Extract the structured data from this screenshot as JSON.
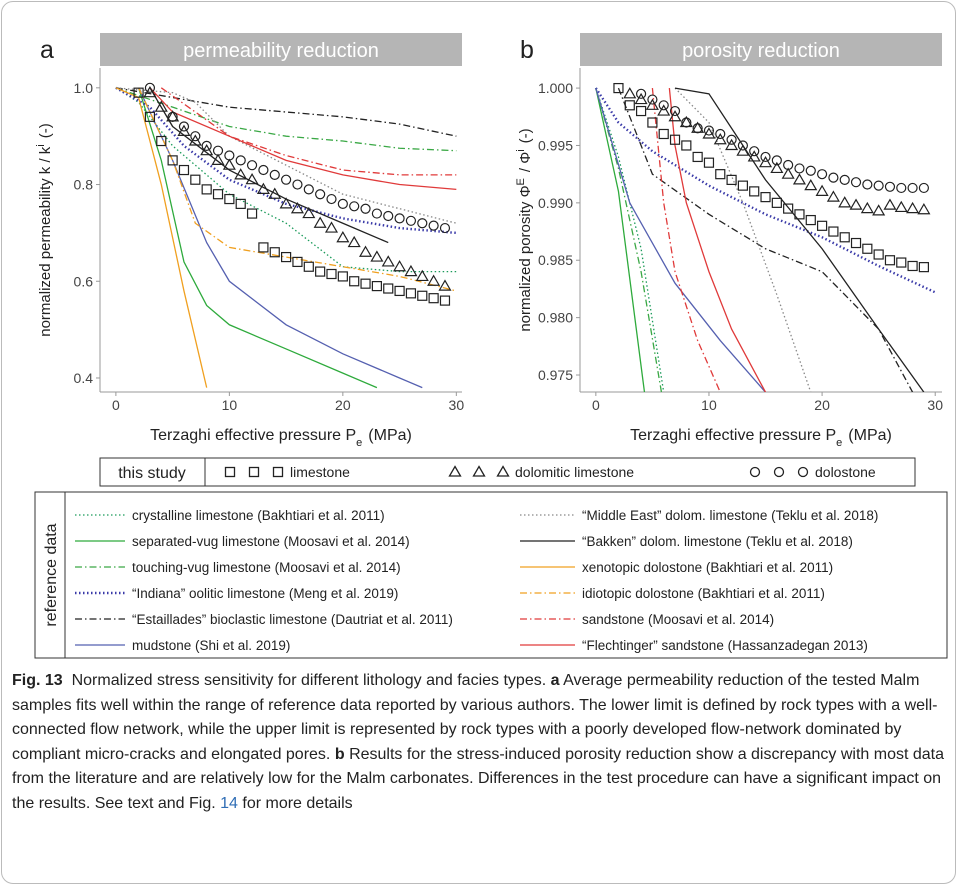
{
  "chart_data": [
    {
      "type": "line",
      "panel_label": "a",
      "title": "permeability reduction",
      "x_label": [
        {
          "text": "Terzaghi effective pressure  P"
        },
        {
          "sub": "e"
        },
        {
          "text": "(MPa)"
        }
      ],
      "y_label": [
        {
          "text": "normalized permeability k / k"
        },
        {
          "sup": "i"
        },
        {
          "text": "(-)"
        }
      ],
      "xlim": [
        -1.4,
        30.5
      ],
      "xticks": [
        0,
        10,
        20,
        30
      ],
      "ylim": [
        0.371,
        1.041
      ],
      "yticks": [
        0.4,
        0.6,
        0.8,
        {
          "value": 1,
          "label": "1.0"
        }
      ],
      "series": [
        {
          "color": "#1a9a5a",
          "dash": "dotted",
          "x": [
            0,
            2,
            5,
            10,
            15,
            20,
            25,
            30
          ],
          "values": [
            1,
            0.97,
            0.88,
            0.78,
            0.72,
            0.63,
            0.62,
            0.62
          ]
        },
        {
          "color": "#2eaa3c",
          "dash": "solid",
          "x": [
            2,
            4,
            6,
            8,
            10,
            15,
            20,
            23
          ],
          "values": [
            1,
            0.85,
            0.64,
            0.55,
            0.51,
            0.46,
            0.41,
            0.38
          ]
        },
        {
          "color": "#3aa845",
          "dash": "dashdot",
          "x": [
            0,
            5,
            10,
            15,
            20,
            25,
            30
          ],
          "values": [
            1,
            0.96,
            0.92,
            0.9,
            0.89,
            0.875,
            0.87
          ]
        },
        {
          "color": "#3a3aa8",
          "dash": "dotted",
          "x": [
            0,
            3,
            6,
            10,
            15,
            20,
            25,
            30
          ],
          "values": [
            1,
            0.96,
            0.88,
            0.81,
            0.76,
            0.73,
            0.71,
            0.7
          ]
        },
        {
          "color": "#222222",
          "dash": "dashdot",
          "x": [
            0,
            5,
            10,
            15,
            20,
            25,
            30
          ],
          "values": [
            1,
            0.98,
            0.96,
            0.95,
            0.94,
            0.925,
            0.9
          ]
        },
        {
          "color": "#5560b0",
          "dash": "solid",
          "x": [
            2,
            5,
            8,
            10,
            15,
            20,
            25,
            27
          ],
          "values": [
            1,
            0.85,
            0.68,
            0.6,
            0.51,
            0.45,
            0.4,
            0.38
          ]
        },
        {
          "color": "#888888",
          "dash": "dotted",
          "x": [
            0,
            5,
            7,
            10,
            15,
            20,
            25,
            30
          ],
          "values": [
            1,
            0.99,
            0.97,
            0.9,
            0.84,
            0.78,
            0.75,
            0.72
          ]
        },
        {
          "color": "#222222",
          "dash": "solid",
          "x": [
            3,
            5,
            10,
            15,
            20,
            24
          ],
          "values": [
            1,
            0.92,
            0.83,
            0.77,
            0.72,
            0.68
          ]
        },
        {
          "color": "#f0a020",
          "dash": "solid",
          "x": [
            0,
            2,
            4,
            6,
            8
          ],
          "values": [
            1,
            0.98,
            0.8,
            0.58,
            0.38
          ]
        },
        {
          "color": "#f0a020",
          "dash": "dashdot",
          "x": [
            2,
            5,
            7,
            10,
            15,
            20,
            25,
            30
          ],
          "values": [
            1,
            0.85,
            0.72,
            0.67,
            0.65,
            0.63,
            0.61,
            0.58
          ]
        },
        {
          "color": "#e03a3a",
          "dash": "dashdot",
          "x": [
            4,
            10,
            15,
            20,
            25,
            30
          ],
          "values": [
            1,
            0.9,
            0.86,
            0.83,
            0.82,
            0.82
          ]
        },
        {
          "color": "#e03a3a",
          "dash": "solid",
          "x": [
            3,
            5,
            10,
            15,
            20,
            25,
            30
          ],
          "values": [
            1,
            0.95,
            0.9,
            0.85,
            0.82,
            0.8,
            0.79
          ]
        },
        {
          "marker": "square",
          "x": [
            2,
            3,
            4,
            5,
            6,
            7,
            8,
            9,
            10,
            11,
            12,
            13,
            14,
            15,
            16,
            17,
            18,
            19,
            20,
            21,
            22,
            23,
            24,
            25,
            26,
            27,
            28,
            29
          ],
          "values": [
            0.99,
            0.94,
            0.89,
            0.85,
            0.83,
            0.81,
            0.79,
            0.78,
            0.77,
            0.76,
            0.74,
            0.67,
            0.66,
            0.65,
            0.64,
            0.63,
            0.62,
            0.615,
            0.61,
            0.6,
            0.595,
            0.59,
            0.585,
            0.58,
            0.575,
            0.57,
            0.565,
            0.56
          ]
        },
        {
          "marker": "triangle",
          "x": [
            3,
            4,
            5,
            6,
            7,
            8,
            9,
            10,
            11,
            12,
            13,
            14,
            15,
            16,
            17,
            18,
            19,
            20,
            21,
            22,
            23,
            24,
            25,
            26,
            27,
            28,
            29
          ],
          "values": [
            0.99,
            0.96,
            0.94,
            0.91,
            0.89,
            0.87,
            0.85,
            0.84,
            0.82,
            0.81,
            0.79,
            0.78,
            0.76,
            0.75,
            0.74,
            0.72,
            0.71,
            0.69,
            0.68,
            0.66,
            0.65,
            0.64,
            0.63,
            0.62,
            0.61,
            0.6,
            0.59
          ]
        },
        {
          "marker": "circle",
          "x": [
            3,
            5,
            6,
            7,
            8,
            9,
            10,
            11,
            12,
            13,
            14,
            15,
            16,
            17,
            18,
            19,
            20,
            21,
            22,
            23,
            24,
            25,
            26,
            27,
            28,
            29
          ],
          "values": [
            1,
            0.94,
            0.92,
            0.9,
            0.88,
            0.87,
            0.86,
            0.85,
            0.84,
            0.83,
            0.82,
            0.81,
            0.8,
            0.79,
            0.78,
            0.77,
            0.76,
            0.755,
            0.75,
            0.74,
            0.735,
            0.73,
            0.725,
            0.72,
            0.715,
            0.71
          ]
        }
      ]
    },
    {
      "type": "line",
      "panel_label": "b",
      "title": "porosity reduction",
      "x_label": [
        {
          "text": "Terzaghi effective pressure  P"
        },
        {
          "sub": "e"
        },
        {
          "text": "(MPa)"
        }
      ],
      "y_label": [
        {
          "text": "normalized porosity Φ"
        },
        {
          "sup": "E"
        },
        {
          "text": "/ Φ"
        },
        {
          "sup": "i"
        },
        {
          "text": "(-)"
        }
      ],
      "xlim": [
        -1.4,
        30.6
      ],
      "xticks": [
        0,
        10,
        20,
        30
      ],
      "ylim": [
        0.97352,
        1.00175
      ],
      "yticks": [
        0.975,
        {
          "value": 0.98,
          "label": "0.980"
        },
        0.985,
        {
          "value": 0.99,
          "label": "0.990"
        },
        0.995,
        {
          "value": 1,
          "label": "1.000"
        }
      ],
      "series": [
        {
          "color": "#1a9a5a",
          "dash": "dotted",
          "x": [
            0,
            2,
            4,
            6
          ],
          "values": [
            1,
            0.994,
            0.986,
            0.9735
          ]
        },
        {
          "color": "#2eaa3c",
          "dash": "solid",
          "x": [
            0,
            2,
            4.3
          ],
          "values": [
            1,
            0.991,
            0.9735
          ]
        },
        {
          "color": "#3aa845",
          "dash": "dashdot",
          "x": [
            0,
            2,
            4,
            5.8
          ],
          "values": [
            1,
            0.993,
            0.984,
            0.9735
          ]
        },
        {
          "color": "#3a3aa8",
          "dash": "dotted",
          "x": [
            0,
            2,
            5,
            10,
            15,
            20,
            25,
            30
          ],
          "values": [
            1,
            0.997,
            0.9945,
            0.9915,
            0.989,
            0.987,
            0.9845,
            0.9822
          ]
        },
        {
          "color": "#222222",
          "dash": "dashdot",
          "x": [
            2,
            5,
            10,
            15,
            20,
            25,
            28
          ],
          "values": [
            1,
            0.9925,
            0.989,
            0.986,
            0.984,
            0.979,
            0.9735
          ]
        },
        {
          "color": "#5560b0",
          "dash": "solid",
          "x": [
            0,
            3,
            7,
            11,
            15
          ],
          "values": [
            1,
            0.99,
            0.983,
            0.978,
            0.9735
          ]
        },
        {
          "color": "#888888",
          "dash": "dotted",
          "x": [
            7,
            10,
            13,
            16,
            19
          ],
          "values": [
            1,
            0.997,
            0.99,
            0.982,
            0.9735
          ]
        },
        {
          "color": "#222222",
          "dash": "solid",
          "x": [
            7,
            10,
            15,
            20,
            25,
            29
          ],
          "values": [
            1,
            0.9995,
            0.992,
            0.986,
            0.979,
            0.9735
          ]
        },
        {
          "color": "#e03a3a",
          "dash": "dashdot",
          "x": [
            5,
            6,
            7,
            9,
            11
          ],
          "values": [
            1,
            0.99,
            0.984,
            0.978,
            0.9735
          ]
        },
        {
          "color": "#e03a3a",
          "dash": "solid",
          "x": [
            6.5,
            7,
            8,
            10,
            12,
            15
          ],
          "values": [
            1,
            0.995,
            0.99,
            0.984,
            0.979,
            0.9735
          ]
        },
        {
          "marker": "square",
          "x": [
            2,
            3,
            4,
            5,
            6,
            7,
            8,
            9,
            10,
            11,
            12,
            13,
            14,
            15,
            16,
            17,
            18,
            19,
            20,
            21,
            22,
            23,
            24,
            25,
            26,
            27,
            28,
            29
          ],
          "values": [
            1,
            0.9985,
            0.998,
            0.997,
            0.996,
            0.9955,
            0.995,
            0.994,
            0.9935,
            0.9925,
            0.992,
            0.9915,
            0.991,
            0.9905,
            0.99,
            0.9895,
            0.989,
            0.9885,
            0.988,
            0.9875,
            0.987,
            0.9865,
            0.986,
            0.9855,
            0.985,
            0.9848,
            0.9845,
            0.9844
          ]
        },
        {
          "marker": "triangle",
          "x": [
            3,
            4,
            5,
            6,
            7,
            8,
            9,
            10,
            11,
            12,
            13,
            14,
            15,
            16,
            17,
            18,
            19,
            20,
            21,
            22,
            23,
            24,
            25,
            26,
            27,
            28,
            29
          ],
          "values": [
            0.9995,
            0.999,
            0.9985,
            0.998,
            0.9975,
            0.997,
            0.9965,
            0.996,
            0.9955,
            0.995,
            0.9945,
            0.994,
            0.9935,
            0.993,
            0.9925,
            0.992,
            0.9915,
            0.991,
            0.9905,
            0.99,
            0.9898,
            0.9895,
            0.9893,
            0.9898,
            0.9896,
            0.9895,
            0.9894
          ]
        },
        {
          "marker": "circle",
          "x": [
            4,
            5,
            6,
            7,
            8,
            9,
            10,
            11,
            12,
            13,
            14,
            15,
            16,
            17,
            18,
            19,
            20,
            21,
            22,
            23,
            24,
            25,
            26,
            27,
            28,
            29
          ],
          "values": [
            0.9995,
            0.999,
            0.9985,
            0.998,
            0.997,
            0.9965,
            0.9963,
            0.996,
            0.9955,
            0.995,
            0.9945,
            0.994,
            0.9937,
            0.9933,
            0.993,
            0.9928,
            0.9925,
            0.9922,
            0.992,
            0.9918,
            0.9916,
            0.9915,
            0.9914,
            0.9913,
            0.9913,
            0.9913
          ]
        }
      ]
    }
  ],
  "legend": {
    "this_study": {
      "title": "this study",
      "items": [
        {
          "name": "limestone",
          "marker": "square"
        },
        {
          "name": "dolomitic limestone",
          "marker": "triangle"
        },
        {
          "name": "dolostone",
          "marker": "circle"
        }
      ]
    },
    "reference": {
      "title": "reference data",
      "items": [
        {
          "name": "crystalline limestone (Bakhtiari et al. 2011)",
          "color": "#1a9a5a",
          "dash": "dotted"
        },
        {
          "name": "separated-vug limestone (Moosavi et al. 2014)",
          "color": "#2eaa3c",
          "dash": "solid"
        },
        {
          "name": "touching-vug limestone (Moosavi et al. 2014)",
          "color": "#3aa845",
          "dash": "dashdot"
        },
        {
          "name": "“Indiana” oolitic limestone (Meng et al. 2019)",
          "color": "#3a3aa8",
          "dash": "dotted"
        },
        {
          "name": "“Estaillades” bioclastic limestone (Dautriat et al. 2011)",
          "color": "#222222",
          "dash": "dashdot"
        },
        {
          "name": "mudstone (Shi et al. 2019)",
          "color": "#5560b0",
          "dash": "solid"
        },
        {
          "name": "“Middle East” dolom. limestone (Teklu et al. 2018)",
          "color": "#888888",
          "dash": "dotted"
        },
        {
          "name": "“Bakken” dolom. limestone (Teklu et al. 2018)",
          "color": "#222222",
          "dash": "solid"
        },
        {
          "name": "xenotopic dolostone (Bakhtiari et al. 2011)",
          "color": "#f0a020",
          "dash": "solid"
        },
        {
          "name": "idiotopic dolostone (Bakhtiari et al. 2011)",
          "color": "#f0a020",
          "dash": "dashdot"
        },
        {
          "name": "sandstone (Moosavi et al. 2014)",
          "color": "#e03a3a",
          "dash": "dashdot"
        },
        {
          "name": "“Flechtinger” sandstone (Hassanzadegan 2013)",
          "color": "#e03a3a",
          "dash": "solid"
        }
      ]
    }
  },
  "caption": {
    "label": "Fig. 13",
    "text_1": "Normalized stress sensitivity for different lithology and facies types.",
    "a": "a",
    "text_2": "Average permeability reduction of the tested Malm samples fits well within the range of reference data reported by various authors. The lower limit is defined by rock types with a well-connected flow network, while the upper limit is represented by rock types with a poorly developed flow-network dominated by compliant micro-cracks and elongated pores.",
    "b": "b",
    "text_3": "Results for the stress-induced porosity reduction show a discrepancy with most data from the literature and are relatively low for the Malm carbonates. Differences in the test procedure can have a significant impact on the results. See text and Fig.",
    "fig_ref": "14",
    "text_4": "for more details"
  }
}
